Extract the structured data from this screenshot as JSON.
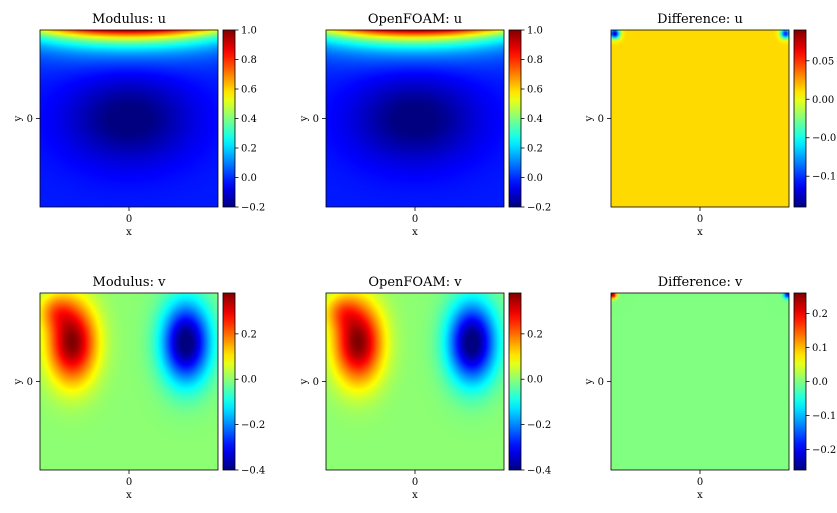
{
  "chart_data": [
    {
      "type": "heatmap",
      "title": "Modulus: u",
      "xlabel": "x",
      "ylabel": "y",
      "xticks": [
        "0"
      ],
      "yticks": [
        "0"
      ],
      "colormap": "jet",
      "pattern": "u",
      "clim": [
        -0.2,
        1.0
      ],
      "colorbar_ticks": [
        {
          "v": -0.2,
          "label": "−0.2"
        },
        {
          "v": 0.0,
          "label": "0.0"
        },
        {
          "v": 0.2,
          "label": "0.2"
        },
        {
          "v": 0.4,
          "label": "0.4"
        },
        {
          "v": 0.6,
          "label": "0.6"
        },
        {
          "v": 0.8,
          "label": "0.8"
        },
        {
          "v": 1.0,
          "label": "1.0"
        }
      ]
    },
    {
      "type": "heatmap",
      "title": "OpenFOAM: u",
      "xlabel": "x",
      "ylabel": "y",
      "xticks": [
        "0"
      ],
      "yticks": [
        "0"
      ],
      "colormap": "jet",
      "pattern": "u",
      "clim": [
        -0.2,
        1.0
      ],
      "colorbar_ticks": [
        {
          "v": -0.2,
          "label": "−0.2"
        },
        {
          "v": 0.0,
          "label": "0.0"
        },
        {
          "v": 0.2,
          "label": "0.2"
        },
        {
          "v": 0.4,
          "label": "0.4"
        },
        {
          "v": 0.6,
          "label": "0.6"
        },
        {
          "v": 0.8,
          "label": "0.8"
        },
        {
          "v": 1.0,
          "label": "1.0"
        }
      ]
    },
    {
      "type": "heatmap",
      "title": "Difference: u",
      "xlabel": "x",
      "ylabel": "y",
      "xticks": [
        "0"
      ],
      "yticks": [
        "0"
      ],
      "colormap": "jet",
      "pattern": "du",
      "clim": [
        -0.14,
        0.09
      ],
      "colorbar_ticks": [
        {
          "v": -0.1,
          "label": "−0.10"
        },
        {
          "v": -0.05,
          "label": "−0.05"
        },
        {
          "v": 0.0,
          "label": "0.00"
        },
        {
          "v": 0.05,
          "label": "0.05"
        }
      ]
    },
    {
      "type": "heatmap",
      "title": "Modulus: v",
      "xlabel": "x",
      "ylabel": "y",
      "xticks": [
        "0"
      ],
      "yticks": [
        "0"
      ],
      "colormap": "jet",
      "pattern": "v",
      "clim": [
        -0.4,
        0.38
      ],
      "colorbar_ticks": [
        {
          "v": -0.4,
          "label": "−0.4"
        },
        {
          "v": -0.2,
          "label": "−0.2"
        },
        {
          "v": 0.0,
          "label": "0.0"
        },
        {
          "v": 0.2,
          "label": "0.2"
        }
      ]
    },
    {
      "type": "heatmap",
      "title": "OpenFOAM: v",
      "xlabel": "x",
      "ylabel": "y",
      "xticks": [
        "0"
      ],
      "yticks": [
        "0"
      ],
      "colormap": "jet",
      "pattern": "v",
      "clim": [
        -0.4,
        0.38
      ],
      "colorbar_ticks": [
        {
          "v": -0.4,
          "label": "−0.4"
        },
        {
          "v": -0.2,
          "label": "−0.2"
        },
        {
          "v": 0.0,
          "label": "0.0"
        },
        {
          "v": 0.2,
          "label": "0.2"
        }
      ]
    },
    {
      "type": "heatmap",
      "title": "Difference: v",
      "xlabel": "x",
      "ylabel": "y",
      "xticks": [
        "0"
      ],
      "yticks": [
        "0"
      ],
      "colormap": "jet",
      "pattern": "dv",
      "clim": [
        -0.26,
        0.26
      ],
      "colorbar_ticks": [
        {
          "v": -0.2,
          "label": "−0.2"
        },
        {
          "v": -0.1,
          "label": "−0.1"
        },
        {
          "v": 0.0,
          "label": "0.0"
        },
        {
          "v": 0.1,
          "label": "0.1"
        },
        {
          "v": 0.2,
          "label": "0.2"
        }
      ]
    }
  ]
}
